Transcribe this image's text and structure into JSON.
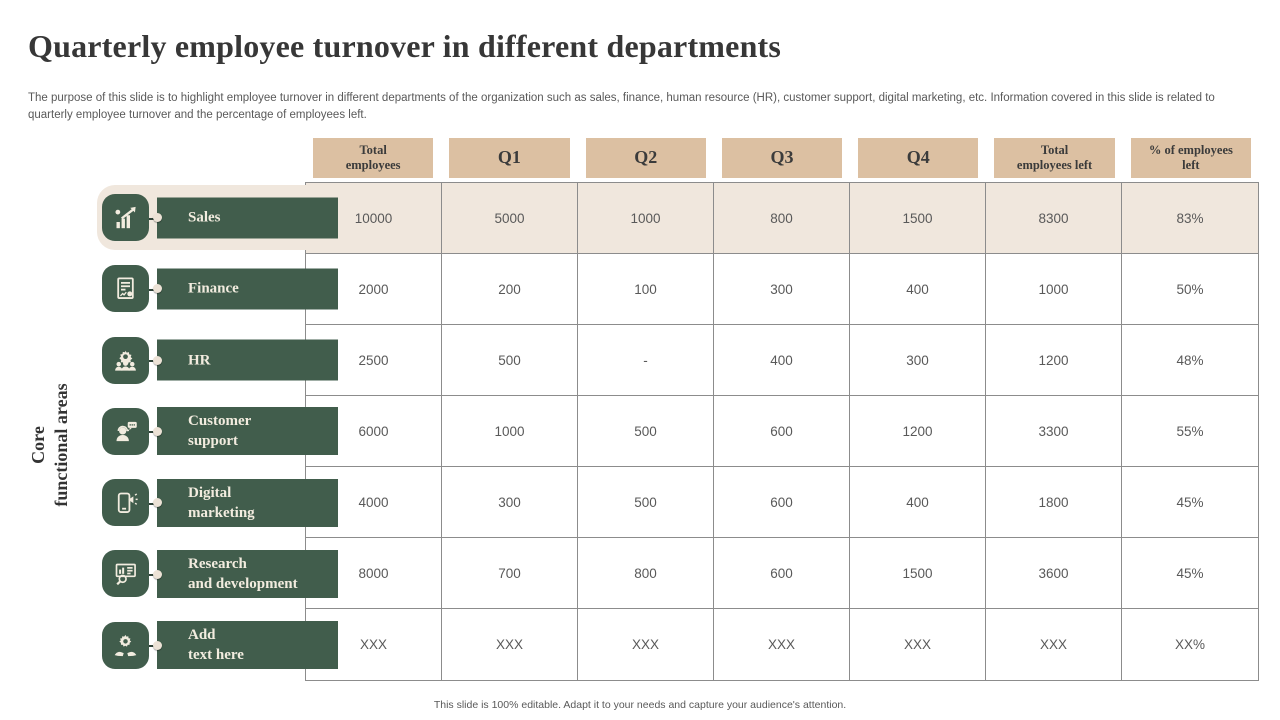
{
  "slide": {
    "title": "Quarterly employee turnover in different departments",
    "description": "The purpose of this slide is to highlight employee turnover in different departments of the organization such as sales, finance, human resource (HR), customer support, digital marketing, etc. Information covered in this slide is related to quarterly employee turnover and the percentage of employees left.",
    "side_label": "Core\nfunctional areas",
    "footer": "This slide is 100% editable. Adapt it to your needs and capture your audience's attention."
  },
  "colors": {
    "dark_green": "#415d4c",
    "tan_header": "#dcc0a2",
    "cream_highlight": "#f0e7dd",
    "grid_line": "#8c8c8c",
    "body_text": "#595959"
  },
  "table": {
    "headers": [
      "Total\nemployees",
      "Q1",
      "Q2",
      "Q3",
      "Q4",
      "Total\nemployees left",
      "% of employees\nleft"
    ],
    "rows": [
      {
        "label": "Sales",
        "icon": "sales-growth-icon",
        "values": [
          "10000",
          "5000",
          "1000",
          "800",
          "1500",
          "8300",
          "83%"
        ]
      },
      {
        "label": "Finance",
        "icon": "finance-report-icon",
        "values": [
          "2000",
          "200",
          "100",
          "300",
          "400",
          "1000",
          "50%"
        ]
      },
      {
        "label": "HR",
        "icon": "hr-team-icon",
        "values": [
          "2500",
          "500",
          "-",
          "400",
          "300",
          "1200",
          "48%"
        ]
      },
      {
        "label": "Customer\nsupport",
        "icon": "customer-support-icon",
        "values": [
          "6000",
          "1000",
          "500",
          "600",
          "1200",
          "3300",
          "55%"
        ]
      },
      {
        "label": "Digital\nmarketing",
        "icon": "digital-marketing-icon",
        "values": [
          "4000",
          "300",
          "500",
          "600",
          "400",
          "1800",
          "45%"
        ]
      },
      {
        "label": "Research\nand development",
        "icon": "research-development-icon",
        "values": [
          "8000",
          "700",
          "800",
          "600",
          "1500",
          "3600",
          "45%"
        ]
      },
      {
        "label": "Add\ntext here",
        "icon": "add-text-icon",
        "values": [
          "XXX",
          "XXX",
          "XXX",
          "XXX",
          "XXX",
          "XXX",
          "XX%"
        ]
      }
    ]
  }
}
